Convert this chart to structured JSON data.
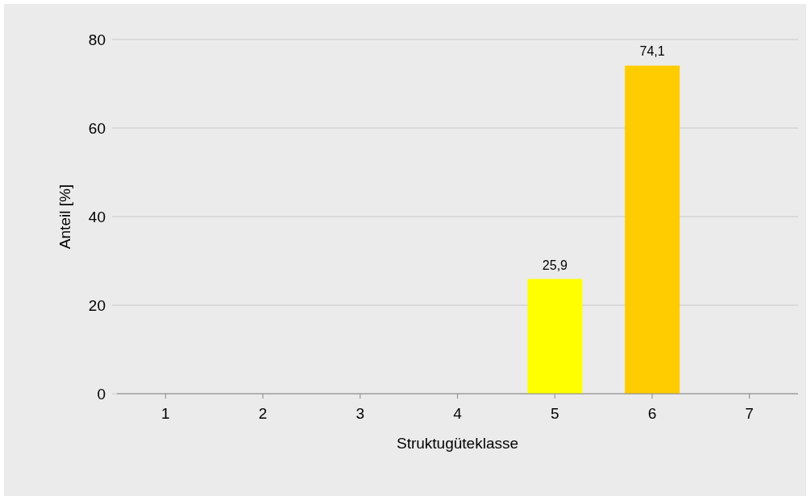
{
  "chart_data": {
    "type": "bar",
    "xlabel": "Struktugüteklasse",
    "ylabel": "Anteil [%]",
    "categories": [
      "1",
      "2",
      "3",
      "4",
      "5",
      "6",
      "7"
    ],
    "values": [
      0,
      0,
      0,
      0,
      25.9,
      74.1,
      0
    ],
    "colors": [
      "#ffff00",
      "#ffff00",
      "#ffff00",
      "#ffff00",
      "#ffff00",
      "#ffcc00",
      "#ffcc00"
    ],
    "value_labels": [
      null,
      null,
      null,
      null,
      "25,9",
      "74,1",
      null
    ],
    "ylim": [
      0,
      80
    ],
    "yticks": [
      0,
      20,
      40,
      60,
      80
    ],
    "grid": "y"
  }
}
